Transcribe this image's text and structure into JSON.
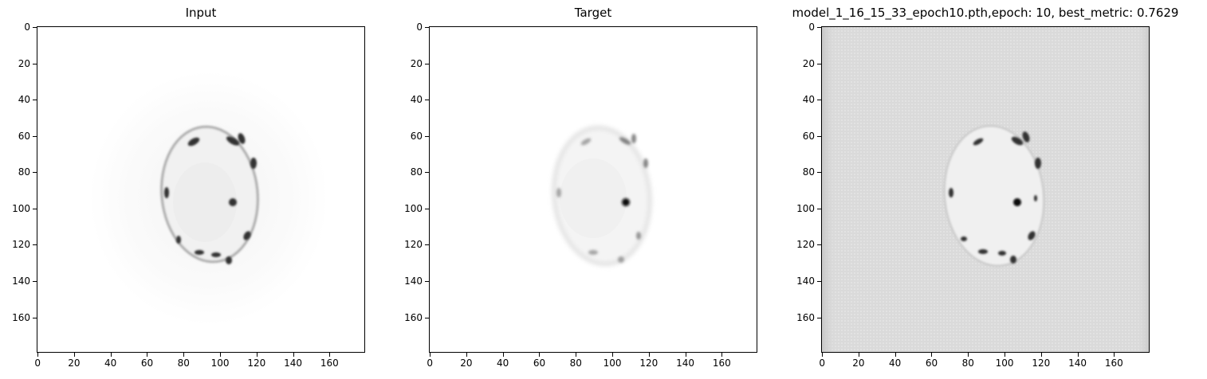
{
  "panels": [
    {
      "id": "input",
      "title": "Input",
      "image_desc_icon": "cell-grayscale-image",
      "background": "#ffffff",
      "x_ticks": [
        "0",
        "20",
        "40",
        "60",
        "80",
        "100",
        "120",
        "140",
        "160"
      ],
      "y_ticks": [
        "0",
        "20",
        "40",
        "60",
        "80",
        "100",
        "120",
        "140",
        "160"
      ],
      "x_range": [
        0,
        180
      ],
      "y_range": [
        0,
        180
      ]
    },
    {
      "id": "target",
      "title": "Target",
      "image_desc_icon": "cell-grayscale-image",
      "background": "#ffffff",
      "x_ticks": [
        "0",
        "20",
        "40",
        "60",
        "80",
        "100",
        "120",
        "140",
        "160"
      ],
      "y_ticks": [
        "0",
        "20",
        "40",
        "60",
        "80",
        "100",
        "120",
        "140",
        "160"
      ],
      "x_range": [
        0,
        180
      ],
      "y_range": [
        0,
        180
      ]
    },
    {
      "id": "prediction",
      "title": "model_1_16_15_33_epoch10.pth,epoch: 10, best_metric: 0.7629",
      "image_desc_icon": "cell-grayscale-image",
      "background": "#dcdcdc",
      "x_ticks": [
        "0",
        "20",
        "40",
        "60",
        "80",
        "100",
        "120",
        "140",
        "160"
      ],
      "y_ticks": [
        "0",
        "20",
        "40",
        "60",
        "80",
        "100",
        "120",
        "140",
        "160"
      ],
      "x_range": [
        0,
        180
      ],
      "y_range": [
        0,
        180
      ]
    }
  ]
}
